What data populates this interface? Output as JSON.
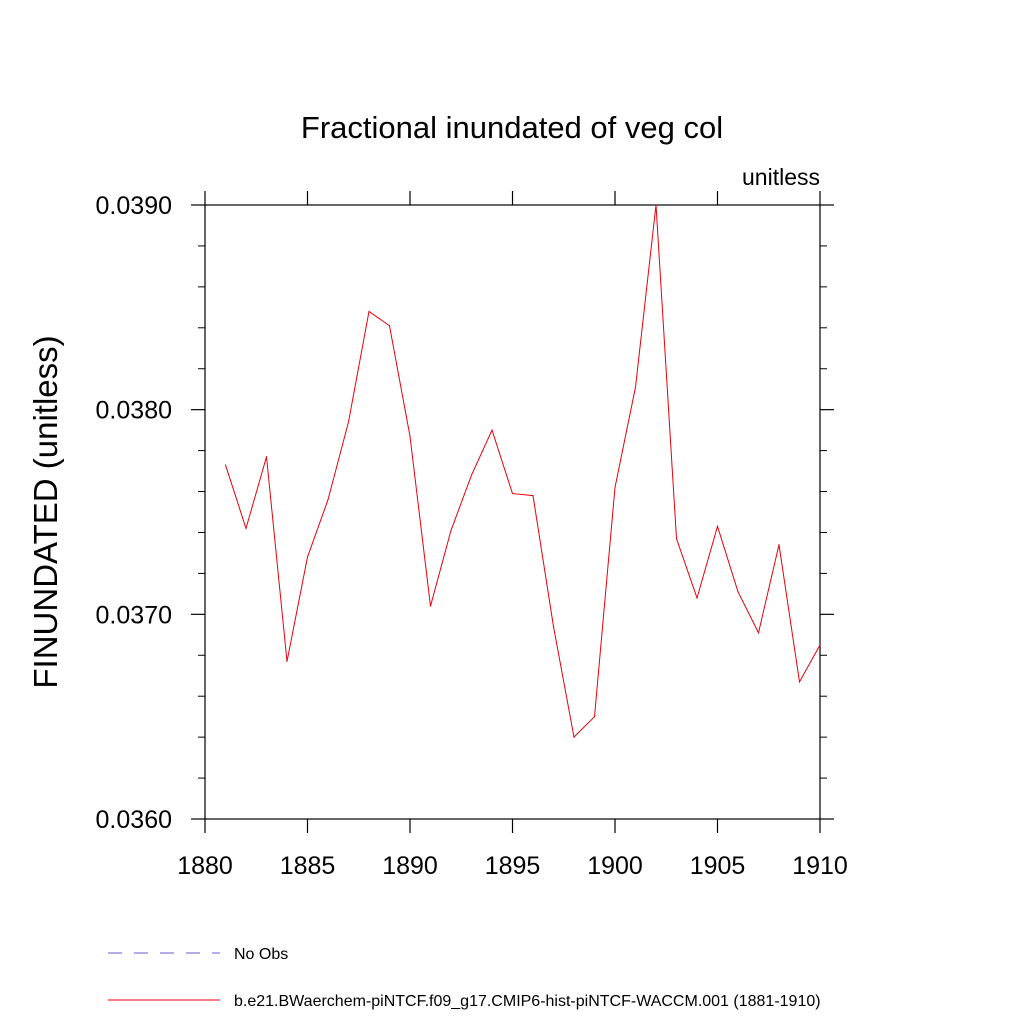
{
  "chart_data": {
    "type": "line",
    "title": "Fractional inundated of veg col",
    "units_label": "unitless",
    "ylabel": "FINUNDATED  (unitless)",
    "xlabel": "",
    "xlim": [
      1880,
      1910
    ],
    "ylim": [
      0.036,
      0.039
    ],
    "x_ticks": [
      1880,
      1885,
      1890,
      1895,
      1900,
      1905,
      1910
    ],
    "x_tick_labels": [
      "1880",
      "1885",
      "1890",
      "1895",
      "1900",
      "1905",
      "1910"
    ],
    "y_ticks": [
      0.036,
      0.037,
      0.038,
      0.039
    ],
    "y_tick_labels": [
      "0.0360",
      "0.0370",
      "0.0380",
      "0.0390"
    ],
    "grid": false,
    "legend_position": "bottom",
    "series": [
      {
        "name": "b.e21.BWaerchem-piNTCF.f09_g17.CMIP6-hist-piNTCF-WACCM.001 (1881-1910)",
        "color": "#e8000b",
        "style": "solid",
        "x": [
          1881,
          1882,
          1883,
          1884,
          1885,
          1886,
          1887,
          1888,
          1889,
          1890,
          1891,
          1892,
          1893,
          1894,
          1895,
          1896,
          1897,
          1898,
          1899,
          1900,
          1901,
          1902,
          1903,
          1904,
          1905,
          1906,
          1907,
          1908,
          1909,
          1910
        ],
        "y": [
          0.03773,
          0.03742,
          0.03777,
          0.03677,
          0.03728,
          0.03756,
          0.03794,
          0.03848,
          0.03841,
          0.03787,
          0.03704,
          0.03741,
          0.03768,
          0.0379,
          0.03759,
          0.03758,
          0.03694,
          0.0364,
          0.0365,
          0.03762,
          0.03811,
          0.039,
          0.03737,
          0.03708,
          0.03743,
          0.03711,
          0.03691,
          0.03734,
          0.03667,
          0.03685
        ]
      }
    ],
    "legend": [
      {
        "label": "No Obs",
        "color": "#6a5acd",
        "style": "dashed"
      },
      {
        "label": "b.e21.BWaerchem-piNTCF.f09_g17.CMIP6-hist-piNTCF-WACCM.001 (1881-1910)",
        "color": "#e8000b",
        "style": "solid"
      }
    ]
  }
}
